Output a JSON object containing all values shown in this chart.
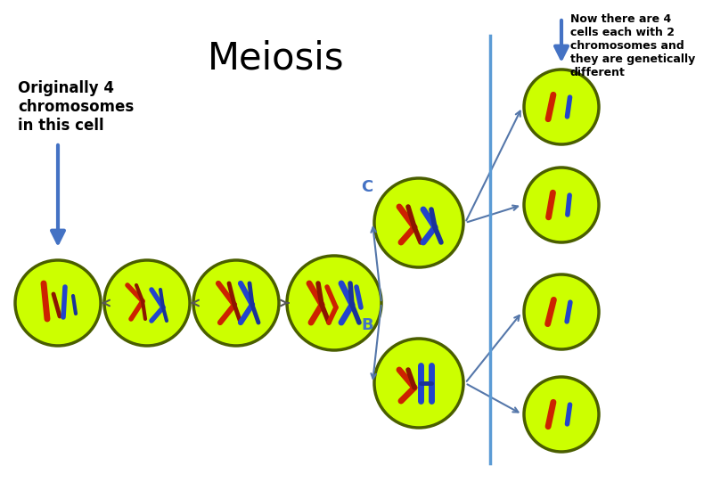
{
  "title": "Meiosis",
  "bg_color": "#ffffff",
  "cell_color": "#ccff00",
  "cell_edge_color": "#4a5e00",
  "arrow_color": "#4472c4",
  "line_color": "#5b9bd5",
  "text_left": "Originally 4\nchromosomes\nin this cell",
  "text_right": "Now there are 4\ncells each with 2\nchromosomes and\nthey are genetically\ndifferent",
  "label_B": "B",
  "label_C": "C",
  "figw": 7.2,
  "figh": 5.4
}
